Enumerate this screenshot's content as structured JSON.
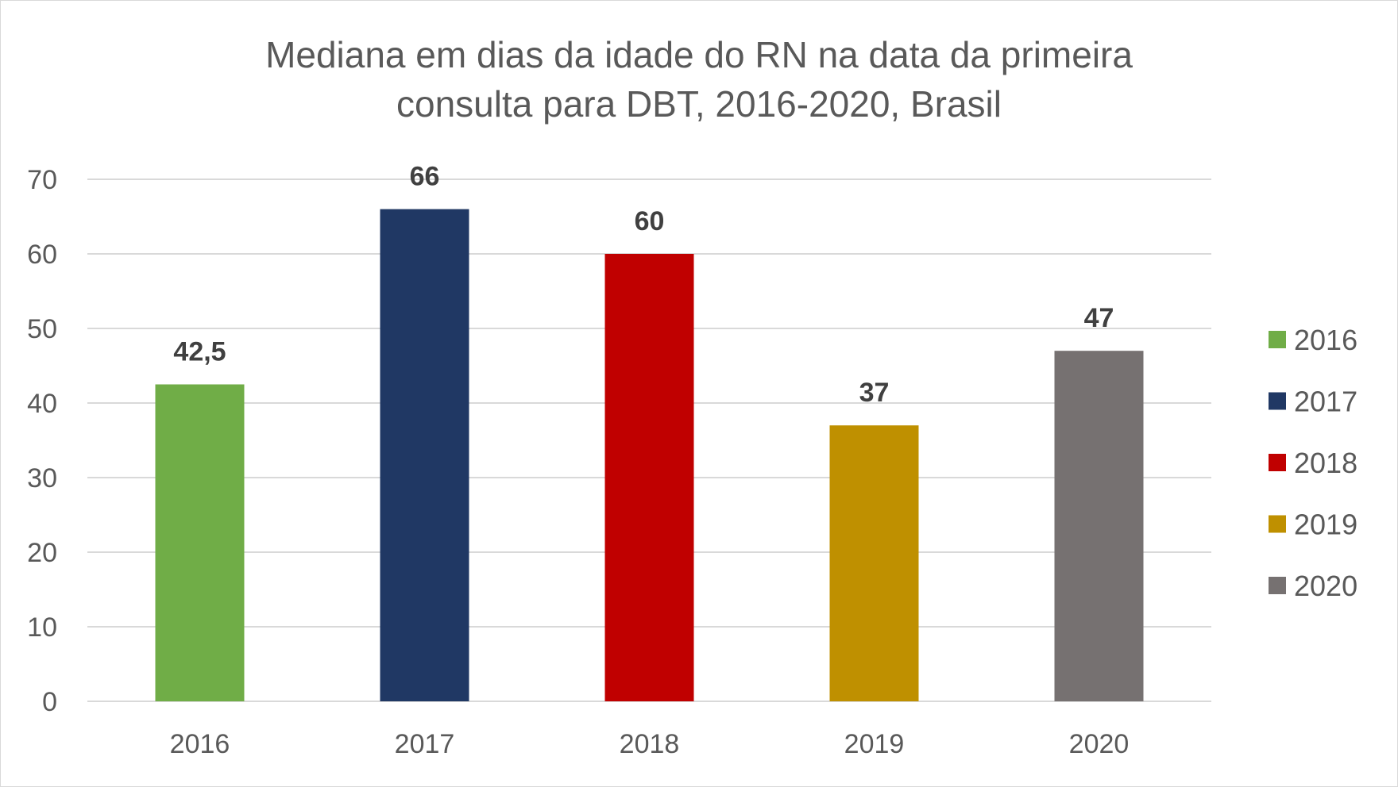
{
  "chart_data": {
    "type": "bar",
    "title_line1": "Mediana em dias da idade do RN na data da primeira",
    "title_line2": "consulta para DBT, 2016-2020, Brasil",
    "xlabel": "",
    "ylabel": "",
    "categories": [
      "2016",
      "2017",
      "2018",
      "2019",
      "2020"
    ],
    "values": [
      42.5,
      66,
      60,
      37,
      47
    ],
    "data_labels": [
      "42,5",
      "66",
      "60",
      "37",
      "47"
    ],
    "colors": [
      "#70ad47",
      "#203864",
      "#c00000",
      "#bf9000",
      "#767171"
    ],
    "ylim": [
      0,
      70
    ],
    "yticks": [
      0,
      10,
      20,
      30,
      40,
      50,
      60,
      70
    ],
    "grid": true,
    "legend": {
      "placement": "right",
      "entries": [
        "2016",
        "2017",
        "2018",
        "2019",
        "2020"
      ]
    }
  }
}
